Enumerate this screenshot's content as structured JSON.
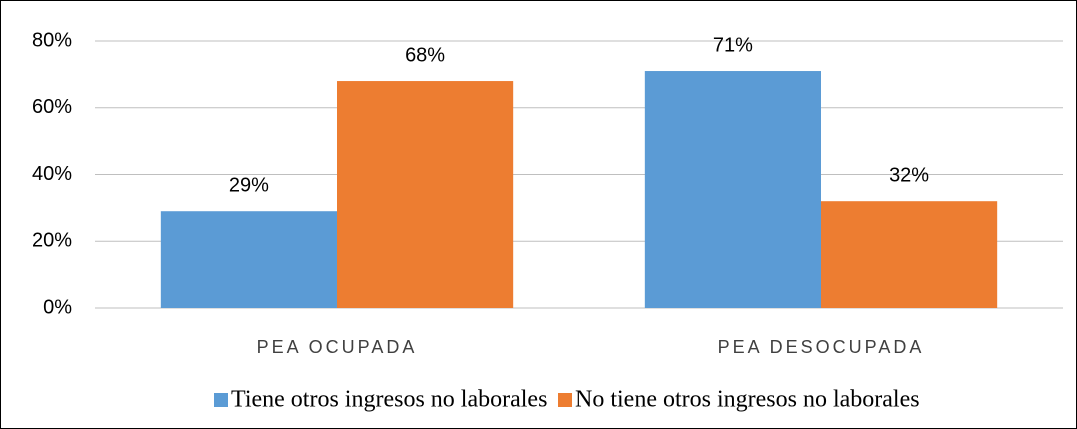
{
  "chart_data": {
    "type": "bar",
    "categories": [
      "PEA OCUPADA",
      "PEA DESOCUPADA"
    ],
    "series": [
      {
        "name": "Tiene otros ingresos no laborales",
        "color": "#5b9bd5",
        "values": [
          29,
          71
        ],
        "value_labels": [
          "29%",
          "71%"
        ]
      },
      {
        "name": "No tiene otros ingresos no laborales",
        "color": "#ed7d31",
        "values": [
          68,
          32
        ],
        "value_labels": [
          "68%",
          "32%"
        ]
      }
    ],
    "ylim": [
      0,
      80
    ],
    "yticks": [
      {
        "value": 0,
        "label": "0%"
      },
      {
        "value": 20,
        "label": "20%"
      },
      {
        "value": 40,
        "label": "40%"
      },
      {
        "value": 60,
        "label": "60%"
      },
      {
        "value": 80,
        "label": "80%"
      }
    ],
    "grid": true,
    "legend": "bottom"
  }
}
